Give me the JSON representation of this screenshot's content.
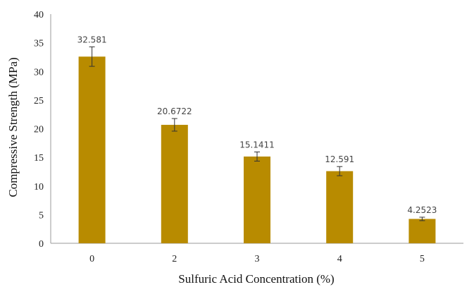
{
  "chart_data": {
    "type": "bar",
    "categories": [
      "0",
      "2",
      "3",
      "4",
      "5"
    ],
    "values": [
      32.581,
      20.6722,
      15.1411,
      12.591,
      4.2523
    ],
    "value_labels": [
      "32.581",
      "20.6722",
      "15.1411",
      "12.591",
      "4.2523"
    ],
    "error": [
      1.7,
      1.1,
      0.8,
      0.8,
      0.3
    ],
    "xlabel": "Sulfuric Acid Concentration (%)",
    "ylabel": "Compressive Strength (MPa)",
    "ylim": [
      0,
      40
    ],
    "yticks": [
      "0",
      "5",
      "10",
      "15",
      "20",
      "25",
      "30",
      "35",
      "40"
    ],
    "grid": false,
    "colors": {
      "bar": "#b88b00",
      "axis": "#9a9a9a",
      "error_bar": "#333333"
    }
  }
}
